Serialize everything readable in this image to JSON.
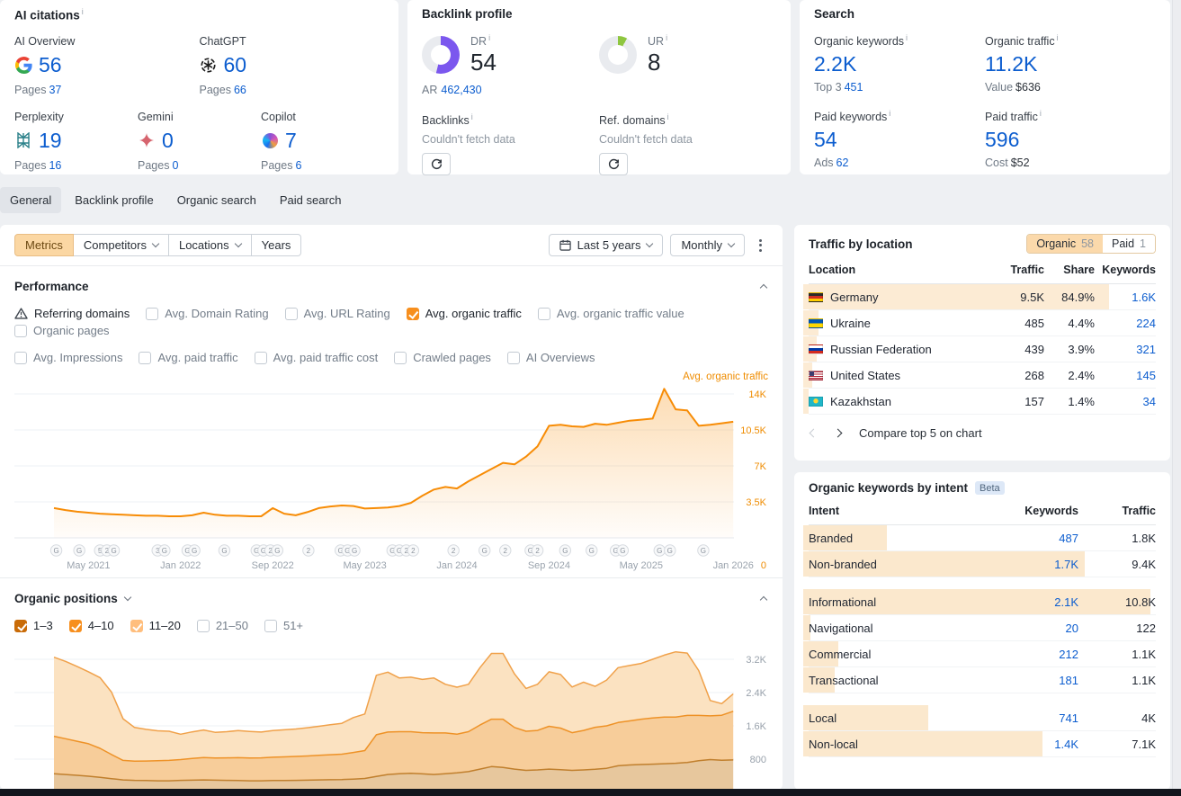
{
  "misc": {
    "info_mark": "i"
  },
  "ai_citations": {
    "title": "AI citations",
    "pages_label": "Pages",
    "items": [
      {
        "name": "AI Overview",
        "icon": "google-icon",
        "value": "56",
        "pages": "37"
      },
      {
        "name": "ChatGPT",
        "icon": "chatgpt-icon",
        "value": "60",
        "pages": "66"
      },
      {
        "name": "Perplexity",
        "icon": "perplexity-icon",
        "value": "19",
        "pages": "16"
      },
      {
        "name": "Gemini",
        "icon": "gemini-icon",
        "value": "0",
        "pages": "0"
      },
      {
        "name": "Copilot",
        "icon": "copilot-icon",
        "value": "7",
        "pages": "6"
      }
    ]
  },
  "backlink_profile": {
    "title": "Backlink profile",
    "dr": {
      "label": "DR",
      "value": "54",
      "percent": 54,
      "color": "#7b57ee",
      "sub_label": "AR",
      "sub_value": "462,430"
    },
    "ur": {
      "label": "UR",
      "value": "8",
      "percent": 8,
      "color": "#8ec63f"
    },
    "backlinks": {
      "label": "Backlinks",
      "status": "Couldn't fetch data"
    },
    "ref_domains": {
      "label": "Ref. domains",
      "status": "Couldn't fetch data"
    }
  },
  "search": {
    "title": "Search",
    "metrics": [
      {
        "label": "Organic keywords",
        "value": "2.2K",
        "sub_label": "Top 3",
        "sub_value": "451"
      },
      {
        "label": "Organic traffic",
        "value": "11.2K",
        "sub_label": "Value",
        "sub_value": "$636"
      },
      {
        "label": "Paid keywords",
        "value": "54",
        "sub_label": "Ads",
        "sub_value": "62"
      },
      {
        "label": "Paid traffic",
        "value": "596",
        "sub_label": "Cost",
        "sub_value": "$52"
      }
    ]
  },
  "tabs": {
    "items": [
      "General",
      "Backlink profile",
      "Organic search",
      "Paid search"
    ],
    "active": 0
  },
  "toolbar": {
    "metrics": "Metrics",
    "competitors": "Competitors",
    "locations": "Locations",
    "years": "Years",
    "date_range": "Last 5 years",
    "granularity": "Monthly"
  },
  "performance": {
    "title": "Performance",
    "legend": "Avg. organic traffic",
    "row_break": 6,
    "metrics": [
      {
        "label": "Referring domains",
        "state": "warning"
      },
      {
        "label": "Avg. Domain Rating",
        "state": "unchecked"
      },
      {
        "label": "Avg. URL Rating",
        "state": "unchecked"
      },
      {
        "label": "Avg. organic traffic",
        "state": "checked",
        "color": "#f78f1e"
      },
      {
        "label": "Avg. organic traffic value",
        "state": "unchecked"
      },
      {
        "label": "Organic pages",
        "state": "unchecked"
      },
      {
        "label": "Avg. Impressions",
        "state": "unchecked"
      },
      {
        "label": "Avg. paid traffic",
        "state": "unchecked"
      },
      {
        "label": "Avg. paid traffic cost",
        "state": "unchecked"
      },
      {
        "label": "Crawled pages",
        "state": "unchecked"
      },
      {
        "label": "AI Overviews",
        "state": "unchecked"
      }
    ]
  },
  "organic_positions": {
    "title": "Organic positions",
    "filters": [
      {
        "label": "1–3",
        "state": "checked",
        "color": "#c96b07"
      },
      {
        "label": "4–10",
        "state": "checked",
        "color": "#f78f1e"
      },
      {
        "label": "11–20",
        "state": "checked",
        "color": "#ffbe7d"
      },
      {
        "label": "21–50",
        "state": "unchecked"
      },
      {
        "label": "51+",
        "state": "unchecked"
      }
    ]
  },
  "chart_data": [
    {
      "type": "area",
      "title": "Avg. organic traffic",
      "x_unit": "month",
      "x_start": "2021-02",
      "x_end": "2026-01",
      "ylim": [
        0,
        14875
      ],
      "tick_color": "#ef8c00",
      "line_color": "#f78c06",
      "zero_label": "0",
      "y_ticks": [
        {
          "v": 14000,
          "label": "14K"
        },
        {
          "v": 10500,
          "label": "10.5K"
        },
        {
          "v": 7000,
          "label": "7K"
        },
        {
          "v": 3500,
          "label": "3.5K"
        }
      ],
      "x_ticks": [
        {
          "m": 3,
          "label": "May 2021"
        },
        {
          "m": 11,
          "label": "Jan 2022"
        },
        {
          "m": 19,
          "label": "Sep 2022"
        },
        {
          "m": 27,
          "label": "May 2023"
        },
        {
          "m": 35,
          "label": "Jan 2024"
        },
        {
          "m": 43,
          "label": "Sep 2024"
        },
        {
          "m": 51,
          "label": "May 2025"
        },
        {
          "m": 59,
          "label": "Jan 2026"
        }
      ],
      "markers": [
        {
          "m": 0.2,
          "t": "G"
        },
        {
          "m": 2.2,
          "t": "G"
        },
        {
          "m": 4.0,
          "t": "5"
        },
        {
          "m": 4.6,
          "t": "2"
        },
        {
          "m": 5.2,
          "t": "G"
        },
        {
          "m": 9.0,
          "t": "3"
        },
        {
          "m": 9.6,
          "t": "G"
        },
        {
          "m": 11.6,
          "t": "G"
        },
        {
          "m": 12.2,
          "t": "G"
        },
        {
          "m": 14.8,
          "t": "G"
        },
        {
          "m": 17.6,
          "t": "G"
        },
        {
          "m": 18.2,
          "t": "G"
        },
        {
          "m": 18.8,
          "t": "2"
        },
        {
          "m": 19.4,
          "t": "G"
        },
        {
          "m": 22.1,
          "t": "2"
        },
        {
          "m": 24.9,
          "t": "G"
        },
        {
          "m": 25.5,
          "t": "G"
        },
        {
          "m": 26.1,
          "t": "G"
        },
        {
          "m": 29.4,
          "t": "G"
        },
        {
          "m": 30.0,
          "t": "G"
        },
        {
          "m": 30.6,
          "t": "2"
        },
        {
          "m": 31.2,
          "t": "2"
        },
        {
          "m": 34.7,
          "t": "2"
        },
        {
          "m": 37.4,
          "t": "G"
        },
        {
          "m": 39.2,
          "t": "2"
        },
        {
          "m": 41.4,
          "t": "G"
        },
        {
          "m": 42.0,
          "t": "2"
        },
        {
          "m": 44.4,
          "t": "G"
        },
        {
          "m": 46.7,
          "t": "G"
        },
        {
          "m": 48.8,
          "t": "G"
        },
        {
          "m": 49.4,
          "t": "G"
        },
        {
          "m": 52.6,
          "t": "G"
        },
        {
          "m": 53.5,
          "t": "G"
        },
        {
          "m": 56.4,
          "t": "G"
        }
      ],
      "values": [
        2900,
        2700,
        2550,
        2450,
        2350,
        2300,
        2250,
        2200,
        2150,
        2150,
        2100,
        2100,
        2200,
        2450,
        2250,
        2150,
        2150,
        2100,
        2100,
        2900,
        2350,
        2200,
        2500,
        2900,
        3050,
        3150,
        3100,
        2850,
        2900,
        2950,
        3100,
        3400,
        4100,
        4700,
        4950,
        4800,
        5500,
        6100,
        6700,
        7300,
        7150,
        7900,
        8900,
        10900,
        11000,
        10850,
        10800,
        11100,
        11000,
        11200,
        11400,
        11500,
        11600,
        14500,
        12500,
        12400,
        10900,
        11000,
        11150,
        11300
      ]
    },
    {
      "type": "stacked-area",
      "title": "Organic positions",
      "x_unit": "month",
      "x_start": "2021-02",
      "x_end": "2026-01",
      "ylim": [
        0,
        3400
      ],
      "tick_color": "#98a1ab",
      "zero_label": "0",
      "y_ticks": [
        {
          "v": 3200,
          "label": "3.2K"
        },
        {
          "v": 2400,
          "label": "2.4K"
        },
        {
          "v": 1600,
          "label": "1.6K"
        },
        {
          "v": 800,
          "label": "800"
        }
      ],
      "series": [
        {
          "name": "1–3",
          "line": "#c07f2d",
          "fill": "#e7c79d",
          "values": [
            450,
            430,
            410,
            390,
            360,
            330,
            300,
            290,
            285,
            280,
            280,
            290,
            295,
            300,
            295,
            290,
            285,
            280,
            280,
            285,
            285,
            290,
            295,
            300,
            305,
            310,
            320,
            335,
            385,
            430,
            450,
            460,
            445,
            430,
            450,
            470,
            500,
            560,
            620,
            600,
            560,
            530,
            540,
            560,
            545,
            530,
            540,
            555,
            580,
            640,
            660,
            670,
            680,
            690,
            700,
            720,
            760,
            790,
            775,
            780
          ]
        },
        {
          "name": "4–10",
          "line": "#ee9227",
          "fill": "#f7cd9a",
          "values": [
            900,
            860,
            820,
            780,
            700,
            580,
            470,
            460,
            470,
            480,
            490,
            500,
            520,
            540,
            530,
            540,
            550,
            545,
            550,
            560,
            570,
            575,
            580,
            590,
            600,
            610,
            640,
            670,
            1000,
            1020,
            1010,
            1000,
            990,
            1000,
            980,
            930,
            960,
            1060,
            1140,
            1160,
            1000,
            940,
            950,
            1030,
            1000,
            905,
            950,
            1010,
            1020,
            1040,
            1060,
            1090,
            1110,
            1120,
            1110,
            1130,
            1090,
            1050,
            1080,
            1170
          ]
        },
        {
          "name": "11–20",
          "line": "#f0a14a",
          "fill": "#fbe2c1",
          "values": [
            1900,
            1860,
            1800,
            1730,
            1700,
            1500,
            1000,
            810,
            760,
            720,
            700,
            610,
            640,
            660,
            620,
            630,
            650,
            640,
            620,
            640,
            650,
            660,
            680,
            700,
            720,
            740,
            840,
            880,
            1430,
            1440,
            1290,
            1310,
            1280,
            1320,
            1170,
            1130,
            1140,
            1380,
            1580,
            1580,
            1290,
            1030,
            1110,
            1310,
            1290,
            1100,
            1160,
            985,
            1100,
            1320,
            1330,
            1340,
            1410,
            1490,
            1570,
            1500,
            1080,
            370,
            280,
            420
          ]
        }
      ]
    }
  ],
  "traffic_by_location": {
    "title": "Traffic by location",
    "toggle": {
      "organic_label": "Organic",
      "organic_count": "58",
      "paid_label": "Paid",
      "paid_count": "1"
    },
    "columns": [
      "Location",
      "Traffic",
      "Share",
      "Keywords"
    ],
    "rows": [
      {
        "country": "Germany",
        "flag": "de",
        "traffic": "9.5K",
        "share": "84.9%",
        "keywords": "1.6K",
        "bar_pct": 88
      },
      {
        "country": "Ukraine",
        "flag": "ua",
        "traffic": "485",
        "share": "4.4%",
        "keywords": "224",
        "bar_pct": 4.5
      },
      {
        "country": "Russian Federation",
        "flag": "ru",
        "traffic": "439",
        "share": "3.9%",
        "keywords": "321",
        "bar_pct": 4
      },
      {
        "country": "United States",
        "flag": "us",
        "traffic": "268",
        "share": "2.4%",
        "keywords": "145",
        "bar_pct": 2.5
      },
      {
        "country": "Kazakhstan",
        "flag": "kz",
        "traffic": "157",
        "share": "1.4%",
        "keywords": "34",
        "bar_pct": 1.5
      }
    ],
    "footer": "Compare top 5 on chart"
  },
  "keywords_by_intent": {
    "title": "Organic keywords by intent",
    "badge": "Beta",
    "columns": [
      "Intent",
      "Keywords",
      "Traffic"
    ],
    "rows": [
      {
        "intent": "Branded",
        "keywords": "487",
        "traffic": "1.8K",
        "bar_pct": 24,
        "group": 0
      },
      {
        "intent": "Non-branded",
        "keywords": "1.7K",
        "traffic": "9.4K",
        "bar_pct": 81,
        "group": 0
      },
      {
        "intent": "Informational",
        "keywords": "2.1K",
        "traffic": "10.8K",
        "bar_pct": 100,
        "group": 1
      },
      {
        "intent": "Navigational",
        "keywords": "20",
        "traffic": "122",
        "bar_pct": 2,
        "group": 1
      },
      {
        "intent": "Commercial",
        "keywords": "212",
        "traffic": "1.1K",
        "bar_pct": 10,
        "group": 1
      },
      {
        "intent": "Transactional",
        "keywords": "181",
        "traffic": "1.1K",
        "bar_pct": 9,
        "group": 1
      },
      {
        "intent": "Local",
        "keywords": "741",
        "traffic": "4K",
        "bar_pct": 36,
        "group": 2
      },
      {
        "intent": "Non-local",
        "keywords": "1.4K",
        "traffic": "7.1K",
        "bar_pct": 69,
        "group": 2
      }
    ]
  }
}
